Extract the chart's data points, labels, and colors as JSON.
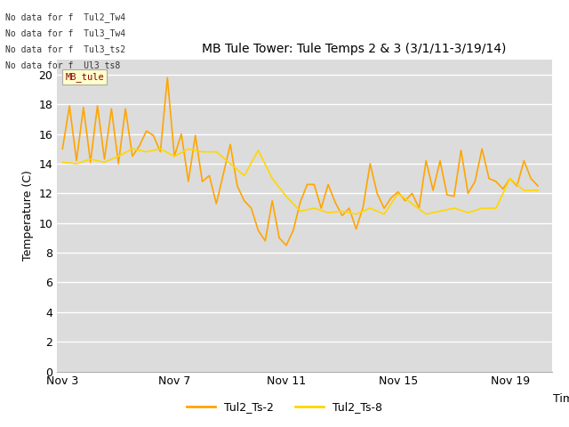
{
  "title": "MB Tule Tower: Tule Temps 2 & 3 (3/1/11-3/19/14)",
  "xlabel": "Time",
  "ylabel": "Temperature (C)",
  "ylim": [
    0,
    21
  ],
  "yticks": [
    0,
    2,
    4,
    6,
    8,
    10,
    12,
    14,
    16,
    18,
    20
  ],
  "bg_color": "#dcdcdc",
  "line1_color": "#FFA500",
  "line2_color": "#FFD700",
  "legend_labels": [
    "Tul2_Ts-2",
    "Tul2_Ts-8"
  ],
  "no_data_texts": [
    "No data for f  Tul2_Tw4",
    "No data for f  Tul3_Tw4",
    "No data for f  Tul3_ts2",
    "No data for f  Ul3_ts8"
  ],
  "tooltip_text": "MB_tule",
  "x_tick_labels": [
    "Nov 3",
    "Nov 7",
    "Nov 11",
    "Nov 15",
    "Nov 19"
  ],
  "x_tick_positions": [
    3,
    7,
    11,
    15,
    19
  ],
  "ts2_x": [
    3.0,
    3.25,
    3.5,
    3.75,
    4.0,
    4.25,
    4.5,
    4.75,
    5.0,
    5.25,
    5.5,
    5.75,
    6.0,
    6.25,
    6.5,
    6.75,
    7.0,
    7.25,
    7.5,
    7.75,
    8.0,
    8.25,
    8.5,
    8.75,
    9.0,
    9.25,
    9.5,
    9.75,
    10.0,
    10.25,
    10.5,
    10.75,
    11.0,
    11.25,
    11.5,
    11.75,
    12.0,
    12.25,
    12.5,
    12.75,
    13.0,
    13.25,
    13.5,
    13.75,
    14.0,
    14.25,
    14.5,
    14.75,
    15.0,
    15.25,
    15.5,
    15.75,
    16.0,
    16.25,
    16.5,
    16.75,
    17.0,
    17.25,
    17.5,
    17.75,
    18.0,
    18.25,
    18.5,
    18.75,
    19.0,
    19.25,
    19.5,
    19.75,
    20.0
  ],
  "ts2_y": [
    15.0,
    17.9,
    14.2,
    17.8,
    14.1,
    17.9,
    14.3,
    17.7,
    14.0,
    17.7,
    14.5,
    15.2,
    16.2,
    15.9,
    14.8,
    19.8,
    14.5,
    16.0,
    12.8,
    15.9,
    12.8,
    13.2,
    11.3,
    13.3,
    15.3,
    12.5,
    11.5,
    11.0,
    9.5,
    8.8,
    11.5,
    9.0,
    8.5,
    9.5,
    11.4,
    12.6,
    12.6,
    11.0,
    12.6,
    11.4,
    10.5,
    11.0,
    9.6,
    11.1,
    14.0,
    12.0,
    11.0,
    11.7,
    12.1,
    11.5,
    12.0,
    11.0,
    14.2,
    12.2,
    14.2,
    11.9,
    11.8,
    14.9,
    12.0,
    12.8,
    15.0,
    13.0,
    12.8,
    12.3,
    13.0,
    12.5,
    14.2,
    13.0,
    12.5
  ],
  "ts8_x": [
    3.0,
    3.5,
    4.0,
    4.5,
    5.0,
    5.5,
    6.0,
    6.5,
    7.0,
    7.5,
    8.0,
    8.5,
    9.0,
    9.5,
    10.0,
    10.5,
    11.0,
    11.5,
    12.0,
    12.5,
    13.0,
    13.5,
    14.0,
    14.5,
    15.0,
    15.5,
    16.0,
    16.5,
    17.0,
    17.5,
    18.0,
    18.5,
    19.0,
    19.5,
    20.0
  ],
  "ts8_y": [
    14.1,
    14.0,
    14.3,
    14.1,
    14.5,
    15.0,
    14.8,
    15.0,
    14.5,
    15.0,
    14.8,
    14.8,
    14.0,
    13.2,
    14.9,
    13.0,
    11.8,
    10.8,
    11.0,
    10.7,
    10.8,
    10.6,
    11.0,
    10.6,
    12.0,
    11.3,
    10.6,
    10.8,
    11.0,
    10.7,
    11.0,
    11.0,
    13.0,
    12.2,
    12.2
  ]
}
